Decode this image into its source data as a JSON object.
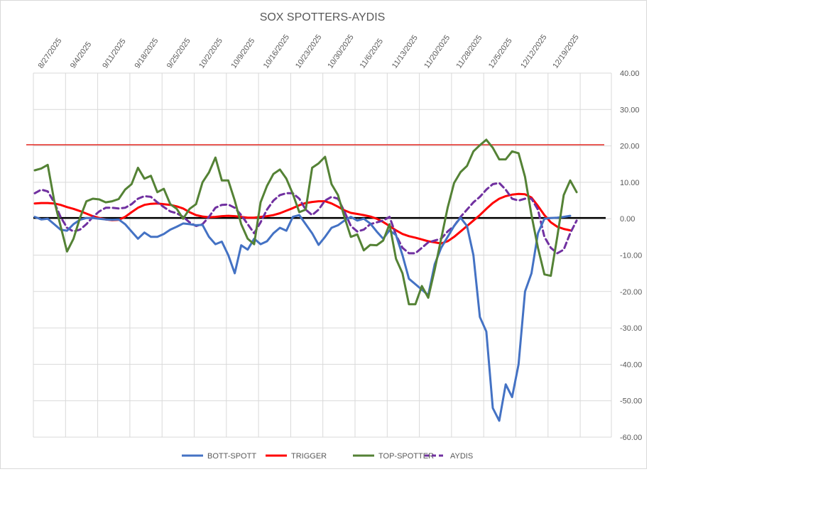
{
  "chart_data": {
    "type": "line",
    "title": "SOX SPOTTERS-AYDIS",
    "xlabel": "",
    "ylabel": "",
    "ylim": [
      -60,
      40
    ],
    "y_ticks": [
      40,
      30,
      20,
      10,
      0,
      -10,
      -20,
      -30,
      -40,
      -50,
      -60
    ],
    "y_tick_labels": [
      "40.00",
      "30.00",
      "20.00",
      "10.00",
      "0.00",
      "-10.00",
      "-20.00",
      "-30.00",
      "-40.00",
      "-50.00",
      "-60.00"
    ],
    "x_tick_labels": [
      "8/27/2025",
      "9/4/2025",
      "9/11/2025",
      "9/18/2025",
      "9/25/2025",
      "10/2/2025",
      "10/9/2025",
      "10/16/2025",
      "10/23/2025",
      "10/30/2025",
      "11/6/2025",
      "11/13/2025",
      "11/20/2025",
      "11/28/2025",
      "12/5/2025",
      "12/12/2025",
      "12/19/2025"
    ],
    "x_axis_position": "top",
    "y_axis_position": "right",
    "grid": true,
    "legend_position": "bottom",
    "reference_lines": [
      {
        "name": "upper-threshold",
        "y": 20.3,
        "color": "#e3251e"
      },
      {
        "name": "zero-line",
        "y": 0.2,
        "color": "#000000"
      }
    ],
    "series": [
      {
        "name": "BOTT-SPOTT",
        "color": "#4472c4",
        "dashed": false,
        "values": [
          0.5,
          -0.2,
          0.0,
          -1.5,
          -3.0,
          -3.3,
          -1.5,
          -0.3,
          0.2,
          0.2,
          0.0,
          -0.2,
          -0.3,
          -0.2,
          -1.5,
          -3.5,
          -5.5,
          -3.8,
          -5.0,
          -5.0,
          -4.2,
          -3.0,
          -2.2,
          -1.3,
          -1.5,
          -1.8,
          -1.7,
          -5.0,
          -7.0,
          -6.3,
          -10.0,
          -15.0,
          -7.3,
          -8.5,
          -5.5,
          -7.0,
          -6.2,
          -4.0,
          -2.5,
          -3.3,
          0.5,
          1.0,
          -1.5,
          -4.0,
          -7.2,
          -5.0,
          -2.5,
          -1.8,
          -0.5,
          0.5,
          -0.5,
          0.0,
          -1.3,
          -3.5,
          -5.5,
          -3.2,
          -4.5,
          -10.0,
          -16.5,
          -18.0,
          -19.5,
          -21.0,
          -12.5,
          -8.0,
          -5.0,
          -2.0,
          0.3,
          -2.0,
          -10.0,
          -27.0,
          -31.0,
          -52.0,
          -55.5,
          -45.5,
          -49.0,
          -40.0,
          -20.0,
          -15.0,
          -4.0,
          0.0,
          0.2,
          0.3,
          0.5,
          0.8
        ]
      },
      {
        "name": "TRIGGER",
        "color": "#ff0000",
        "dashed": false,
        "values": [
          4.2,
          4.3,
          4.3,
          4.2,
          3.8,
          3.2,
          2.7,
          2.1,
          1.4,
          0.7,
          0.2,
          -0.2,
          -0.4,
          -0.3,
          0.5,
          1.8,
          3.0,
          3.8,
          4.1,
          4.2,
          4.0,
          3.8,
          3.4,
          2.8,
          1.8,
          1.0,
          0.6,
          0.4,
          0.5,
          0.7,
          0.8,
          0.7,
          0.5,
          0.3,
          0.3,
          0.5,
          0.7,
          1.0,
          1.5,
          2.2,
          2.9,
          3.7,
          4.3,
          4.6,
          4.8,
          4.8,
          4.2,
          3.3,
          2.3,
          1.6,
          1.3,
          1.0,
          0.6,
          0.0,
          -0.9,
          -2.0,
          -3.2,
          -4.2,
          -4.8,
          -5.2,
          -5.7,
          -6.2,
          -6.5,
          -6.8,
          -6.2,
          -5.0,
          -3.5,
          -2.0,
          -0.5,
          1.0,
          2.7,
          4.3,
          5.5,
          6.2,
          6.6,
          6.8,
          6.7,
          5.8,
          3.5,
          1.0,
          -1.0,
          -2.2,
          -2.8,
          -3.2
        ]
      },
      {
        "name": "TOP-SPOTTER",
        "color": "#548235",
        "dashed": false,
        "values": [
          13.3,
          13.8,
          14.8,
          5.0,
          -2.0,
          -9.0,
          -5.5,
          0.2,
          4.8,
          5.5,
          5.3,
          4.5,
          4.8,
          5.4,
          8.0,
          9.5,
          14.0,
          11.0,
          11.8,
          7.3,
          8.2,
          4.0,
          2.7,
          0.0,
          2.7,
          4.0,
          10.0,
          12.7,
          16.8,
          10.5,
          10.5,
          5.0,
          -1.5,
          -5.5,
          -7.0,
          4.5,
          9.0,
          12.3,
          13.5,
          11.0,
          6.8,
          1.8,
          2.5,
          14.0,
          15.2,
          17.0,
          9.5,
          6.5,
          0.5,
          -5.0,
          -4.3,
          -8.7,
          -7.2,
          -7.3,
          -6.0,
          -1.5,
          -11.0,
          -15.0,
          -23.5,
          -23.5,
          -18.5,
          -21.7,
          -14.0,
          -5.5,
          3.0,
          9.8,
          12.8,
          14.5,
          18.5,
          20.2,
          21.7,
          19.5,
          16.3,
          16.3,
          18.5,
          18.0,
          11.5,
          1.0,
          -8.0,
          -15.3,
          -15.7,
          -5.0,
          6.5,
          10.5,
          7.3
        ]
      },
      {
        "name": "AYDIS",
        "color": "#7030a0",
        "dashed": true,
        "values": [
          7.0,
          8.0,
          7.5,
          4.5,
          0.5,
          -2.5,
          -3.5,
          -3.0,
          -1.5,
          0.5,
          2.0,
          3.0,
          3.0,
          2.8,
          3.0,
          4.0,
          5.5,
          6.2,
          6.0,
          4.5,
          3.2,
          2.0,
          1.5,
          0.5,
          -1.0,
          -2.0,
          -1.5,
          0.5,
          3.0,
          3.8,
          3.9,
          3.0,
          1.0,
          -1.5,
          -4.0,
          -1.0,
          2.5,
          5.0,
          6.5,
          7.0,
          7.0,
          5.5,
          2.5,
          1.0,
          2.5,
          5.0,
          6.0,
          5.5,
          2.0,
          -2.0,
          -3.5,
          -3.0,
          -1.5,
          -1.0,
          -0.5,
          0.5,
          -4.5,
          -8.0,
          -9.5,
          -9.5,
          -8.0,
          -6.5,
          -6.0,
          -5.5,
          -3.5,
          -2.0,
          0.5,
          2.5,
          4.5,
          6.0,
          8.0,
          9.5,
          9.8,
          8.0,
          5.5,
          5.0,
          5.5,
          5.5,
          2.5,
          -5.0,
          -8.0,
          -9.5,
          -8.5,
          -4.0,
          -0.5
        ]
      }
    ]
  }
}
